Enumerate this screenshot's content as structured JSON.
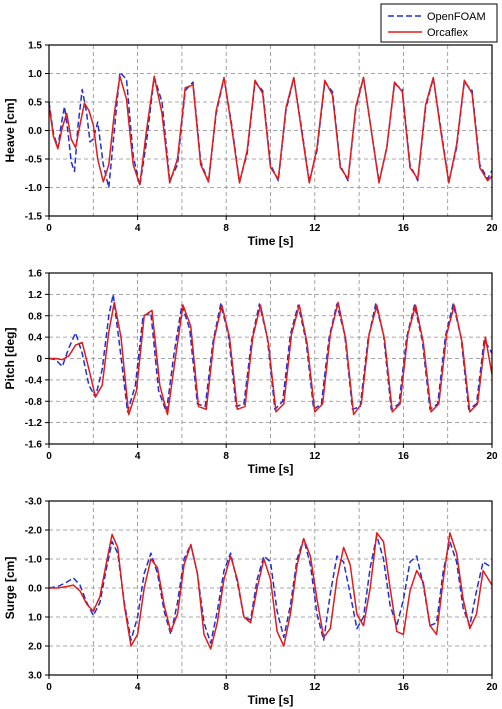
{
  "legend": {
    "placement": "top-right",
    "entries": [
      {
        "label": "OpenFOAM",
        "color": "#1f2fd6",
        "style": "dashed"
      },
      {
        "label": "Orcaflex",
        "color": "#e21b1b",
        "style": "solid"
      }
    ]
  },
  "chart_data": [
    {
      "type": "line",
      "xlabel": "Time [s]",
      "ylabel": "Heave [cm]",
      "xlim": [
        0,
        20
      ],
      "ylim": [
        -1.5,
        1.5
      ],
      "y_inverted": false,
      "xticks": [
        0,
        4,
        8,
        12,
        16,
        20
      ],
      "xtick_labels": [
        "0",
        "4",
        "8",
        "12",
        "16",
        "20"
      ],
      "yticks": [
        1.5,
        1.0,
        0.5,
        0.0,
        -0.5,
        -1.0,
        -1.5
      ],
      "ytick_labels": [
        "1.5",
        "1.0",
        "0.5",
        "0.0",
        "-0.5",
        "-1.0",
        "-1.5"
      ],
      "grid": true,
      "series": [
        {
          "name": "OpenFOAM",
          "color": "#1f2fd6",
          "style": "dashed",
          "x": [
            0,
            0.2,
            0.4,
            0.55,
            0.7,
            0.85,
            1.0,
            1.15,
            1.3,
            1.5,
            1.7,
            1.85,
            2.0,
            2.2,
            2.45,
            2.7,
            2.95,
            3.2,
            3.5,
            3.8,
            4.1,
            4.4,
            4.75,
            5.1,
            5.45,
            5.8,
            6.15,
            6.5,
            6.85,
            7.2,
            7.55,
            7.9,
            8.25,
            8.6,
            8.95,
            9.3,
            9.65,
            10.0,
            10.35,
            10.7,
            11.05,
            11.4,
            11.75,
            12.1,
            12.45,
            12.8,
            13.15,
            13.5,
            13.85,
            14.2,
            14.55,
            14.9,
            15.25,
            15.6,
            15.95,
            16.3,
            16.65,
            17.0,
            17.35,
            17.7,
            18.05,
            18.4,
            18.75,
            19.1,
            19.45,
            19.8,
            20.0
          ],
          "y": [
            0.5,
            -0.05,
            -0.3,
            0.1,
            0.42,
            0.0,
            -0.55,
            -0.72,
            0.05,
            0.72,
            0.3,
            -0.2,
            -0.15,
            0.15,
            -0.6,
            -1.0,
            0.0,
            1.02,
            0.9,
            -0.45,
            -0.97,
            -0.2,
            0.94,
            0.5,
            -0.88,
            -0.6,
            0.7,
            0.85,
            -0.55,
            -0.9,
            0.3,
            0.92,
            0.1,
            -0.9,
            -0.4,
            0.85,
            0.7,
            -0.6,
            -0.88,
            0.35,
            0.92,
            0.05,
            -0.9,
            -0.35,
            0.85,
            0.68,
            -0.62,
            -0.88,
            0.38,
            0.93,
            0.0,
            -0.9,
            -0.3,
            0.82,
            0.72,
            -0.6,
            -0.88,
            0.4,
            0.92,
            0.0,
            -0.9,
            -0.3,
            0.85,
            0.7,
            -0.6,
            -0.85,
            -0.7
          ]
        },
        {
          "name": "Orcaflex",
          "color": "#e21b1b",
          "style": "solid",
          "x": [
            0,
            0.2,
            0.4,
            0.6,
            0.8,
            1.0,
            1.2,
            1.4,
            1.6,
            1.8,
            2.0,
            2.2,
            2.45,
            2.7,
            2.95,
            3.2,
            3.5,
            3.8,
            4.1,
            4.4,
            4.75,
            5.1,
            5.45,
            5.8,
            6.15,
            6.5,
            6.85,
            7.2,
            7.55,
            7.9,
            8.25,
            8.6,
            8.95,
            9.3,
            9.65,
            10.0,
            10.35,
            10.7,
            11.05,
            11.4,
            11.75,
            12.1,
            12.45,
            12.8,
            13.15,
            13.5,
            13.85,
            14.2,
            14.55,
            14.9,
            15.25,
            15.6,
            15.95,
            16.3,
            16.65,
            17.0,
            17.35,
            17.7,
            18.05,
            18.4,
            18.75,
            19.1,
            19.45,
            19.8,
            20.0
          ],
          "y": [
            0.45,
            -0.1,
            -0.32,
            0.05,
            0.3,
            -0.15,
            -0.3,
            0.1,
            0.48,
            0.35,
            0.1,
            -0.5,
            -0.9,
            -0.6,
            0.3,
            0.95,
            0.55,
            -0.6,
            -0.95,
            0.0,
            0.95,
            0.3,
            -0.92,
            -0.5,
            0.75,
            0.8,
            -0.6,
            -0.9,
            0.35,
            0.93,
            0.05,
            -0.92,
            -0.35,
            0.88,
            0.65,
            -0.65,
            -0.85,
            0.4,
            0.93,
            0.0,
            -0.92,
            -0.3,
            0.88,
            0.62,
            -0.65,
            -0.85,
            0.42,
            0.93,
            0.0,
            -0.92,
            -0.3,
            0.85,
            0.68,
            -0.65,
            -0.85,
            0.45,
            0.93,
            -0.05,
            -0.92,
            -0.25,
            0.88,
            0.65,
            -0.65,
            -0.88,
            -0.8
          ]
        }
      ]
    },
    {
      "type": "line",
      "xlabel": "Time [s]",
      "ylabel": "Pitch [deg]",
      "xlim": [
        0,
        20
      ],
      "ylim": [
        -1.6,
        1.6
      ],
      "y_inverted": false,
      "xticks": [
        0,
        4,
        8,
        12,
        16,
        20
      ],
      "xtick_labels": [
        "0",
        "4",
        "8",
        "12",
        "16",
        "20"
      ],
      "yticks": [
        1.6,
        1.2,
        0.8,
        0.4,
        0.0,
        -0.4,
        -0.8,
        -1.2,
        -1.6
      ],
      "ytick_labels": [
        "1.6",
        "1.2",
        "0.8",
        "0.4",
        "0",
        "-0.4",
        "-0.8",
        "-1.2",
        "-1.6"
      ],
      "grid": true,
      "series": [
        {
          "name": "OpenFOAM",
          "color": "#1f2fd6",
          "style": "dashed",
          "x": [
            0,
            0.3,
            0.6,
            0.9,
            1.2,
            1.5,
            1.8,
            2.1,
            2.4,
            2.7,
            2.9,
            3.2,
            3.55,
            3.9,
            4.25,
            4.6,
            4.95,
            5.3,
            5.65,
            6.0,
            6.35,
            6.7,
            7.05,
            7.4,
            7.75,
            8.1,
            8.45,
            8.8,
            9.15,
            9.5,
            9.85,
            10.2,
            10.55,
            10.9,
            11.25,
            11.6,
            11.95,
            12.3,
            12.65,
            13.0,
            13.35,
            13.7,
            14.05,
            14.4,
            14.75,
            15.1,
            15.45,
            15.8,
            16.15,
            16.5,
            16.85,
            17.2,
            17.55,
            17.9,
            18.25,
            18.6,
            18.95,
            19.3,
            19.65,
            20.0
          ],
          "y": [
            0.0,
            -0.02,
            -0.15,
            0.2,
            0.48,
            0.1,
            -0.5,
            -0.72,
            -0.2,
            0.8,
            1.2,
            0.2,
            -1.0,
            -0.5,
            0.8,
            0.85,
            -0.6,
            -1.0,
            0.1,
            1.0,
            0.55,
            -0.85,
            -0.9,
            0.3,
            1.02,
            0.45,
            -0.9,
            -0.85,
            0.35,
            1.02,
            0.4,
            -0.95,
            -0.8,
            0.45,
            1.0,
            0.35,
            -0.95,
            -0.85,
            0.4,
            1.02,
            0.45,
            -0.95,
            -0.9,
            0.35,
            1.02,
            0.45,
            -0.95,
            -0.85,
            0.4,
            1.0,
            0.35,
            -0.95,
            -0.85,
            0.42,
            1.02,
            0.4,
            -0.95,
            -0.85,
            0.35,
            0.1
          ]
        },
        {
          "name": "Orcaflex",
          "color": "#e21b1b",
          "style": "solid",
          "x": [
            0,
            0.3,
            0.6,
            0.9,
            1.2,
            1.5,
            1.8,
            2.1,
            2.4,
            2.7,
            2.95,
            3.25,
            3.6,
            3.95,
            4.3,
            4.65,
            5.0,
            5.35,
            5.7,
            6.05,
            6.4,
            6.75,
            7.1,
            7.45,
            7.8,
            8.15,
            8.5,
            8.85,
            9.2,
            9.55,
            9.9,
            10.25,
            10.6,
            10.95,
            11.3,
            11.65,
            12.0,
            12.35,
            12.7,
            13.05,
            13.4,
            13.75,
            14.1,
            14.45,
            14.8,
            15.15,
            15.5,
            15.85,
            16.2,
            16.55,
            16.9,
            17.25,
            17.6,
            17.95,
            18.3,
            18.65,
            19.0,
            19.35,
            19.7,
            20.0
          ],
          "y": [
            0.0,
            0.0,
            -0.02,
            0.05,
            0.25,
            0.3,
            -0.2,
            -0.72,
            -0.5,
            0.5,
            1.05,
            0.4,
            -1.05,
            -0.6,
            0.8,
            0.9,
            -0.5,
            -1.05,
            0.0,
            1.0,
            0.6,
            -0.9,
            -0.95,
            0.35,
            1.0,
            0.4,
            -0.95,
            -0.9,
            0.4,
            1.0,
            0.3,
            -1.0,
            -0.85,
            0.45,
            1.0,
            0.3,
            -1.0,
            -0.85,
            0.45,
            1.05,
            0.35,
            -1.05,
            -0.85,
            0.45,
            1.0,
            0.35,
            -1.0,
            -0.85,
            0.45,
            1.0,
            0.3,
            -1.0,
            -0.85,
            0.45,
            1.0,
            0.3,
            -1.0,
            -0.85,
            0.4,
            -0.3
          ]
        }
      ]
    },
    {
      "type": "line",
      "xlabel": "Time [s]",
      "ylabel": "Surge [cm]",
      "xlim": [
        0,
        20
      ],
      "ylim": [
        -3.0,
        3.0
      ],
      "y_inverted": true,
      "xticks": [
        0,
        4,
        8,
        12,
        16,
        20
      ],
      "xtick_labels": [
        "0",
        "4",
        "8",
        "12",
        "16",
        "20"
      ],
      "yticks": [
        -3.0,
        -2.0,
        -1.0,
        0.0,
        1.0,
        2.0,
        3.0
      ],
      "ytick_labels": [
        "-3.0",
        "-2.0",
        "-1.0",
        "0.0",
        "1.0",
        "2.0",
        "3.0"
      ],
      "grid": true,
      "series": [
        {
          "name": "OpenFOAM",
          "color": "#1f2fd6",
          "style": "dashed",
          "x": [
            0,
            0.4,
            0.8,
            1.1,
            1.4,
            1.7,
            2.0,
            2.3,
            2.6,
            2.85,
            3.1,
            3.4,
            3.7,
            4.0,
            4.3,
            4.6,
            4.9,
            5.2,
            5.5,
            5.8,
            6.1,
            6.4,
            6.7,
            7.0,
            7.3,
            7.6,
            7.9,
            8.2,
            8.5,
            8.8,
            9.1,
            9.4,
            9.7,
            10.0,
            10.3,
            10.6,
            10.9,
            11.2,
            11.5,
            11.8,
            12.1,
            12.4,
            12.7,
            13.0,
            13.3,
            13.6,
            13.9,
            14.2,
            14.5,
            14.8,
            15.1,
            15.4,
            15.7,
            16.0,
            16.3,
            16.6,
            16.9,
            17.2,
            17.5,
            17.8,
            18.1,
            18.4,
            18.7,
            19.0,
            19.3,
            19.6,
            20.0
          ],
          "y": [
            0.0,
            -0.05,
            -0.2,
            -0.35,
            -0.1,
            0.5,
            0.95,
            0.5,
            -0.7,
            -1.6,
            -1.2,
            0.5,
            1.8,
            1.0,
            -0.5,
            -1.2,
            -0.5,
            0.8,
            1.6,
            0.5,
            -1.0,
            -1.5,
            -0.5,
            1.2,
            1.9,
            0.8,
            -0.6,
            -1.2,
            -0.2,
            1.0,
            1.1,
            -0.3,
            -1.1,
            -0.9,
            0.8,
            1.7,
            0.6,
            -1.0,
            -1.7,
            -0.8,
            0.9,
            1.8,
            0.2,
            -1.1,
            -0.9,
            0.2,
            1.4,
            1.0,
            -0.7,
            -1.8,
            -1.0,
            0.6,
            1.3,
            0.4,
            -0.9,
            -1.1,
            -0.1,
            1.3,
            1.2,
            -0.6,
            -1.6,
            -0.9,
            0.7,
            1.3,
            0.1,
            -0.9,
            -0.7
          ]
        },
        {
          "name": "Orcaflex",
          "color": "#e21b1b",
          "style": "solid",
          "x": [
            0,
            0.4,
            0.8,
            1.1,
            1.4,
            1.7,
            2.0,
            2.3,
            2.6,
            2.85,
            3.1,
            3.4,
            3.7,
            4.0,
            4.3,
            4.6,
            4.9,
            5.2,
            5.5,
            5.8,
            6.1,
            6.4,
            6.7,
            7.0,
            7.3,
            7.6,
            7.9,
            8.2,
            8.5,
            8.8,
            9.1,
            9.4,
            9.7,
            10.0,
            10.3,
            10.6,
            10.9,
            11.2,
            11.5,
            11.8,
            12.1,
            12.4,
            12.7,
            13.0,
            13.3,
            13.6,
            13.9,
            14.2,
            14.5,
            14.8,
            15.1,
            15.4,
            15.7,
            16.0,
            16.3,
            16.6,
            16.9,
            17.2,
            17.5,
            17.8,
            18.1,
            18.4,
            18.7,
            19.0,
            19.3,
            19.6,
            20.0
          ],
          "y": [
            0.0,
            0.0,
            -0.05,
            -0.1,
            0.1,
            0.55,
            0.8,
            0.3,
            -0.9,
            -1.85,
            -1.4,
            0.6,
            2.0,
            1.6,
            0.0,
            -1.0,
            -0.7,
            0.6,
            1.5,
            0.9,
            -0.8,
            -1.5,
            -0.5,
            1.6,
            2.1,
            1.2,
            -0.3,
            -1.1,
            -0.3,
            1.0,
            1.2,
            0.0,
            -1.0,
            -0.3,
            1.5,
            2.0,
            0.9,
            -0.8,
            -1.7,
            -1.1,
            0.4,
            1.7,
            1.4,
            -0.3,
            -1.4,
            -0.8,
            0.9,
            1.3,
            0.0,
            -1.9,
            -1.6,
            0.0,
            1.5,
            1.6,
            0.1,
            -0.6,
            -0.2,
            1.3,
            1.6,
            -0.3,
            -1.9,
            -1.2,
            0.4,
            1.4,
            0.9,
            -0.6,
            -0.1
          ]
        }
      ]
    }
  ]
}
